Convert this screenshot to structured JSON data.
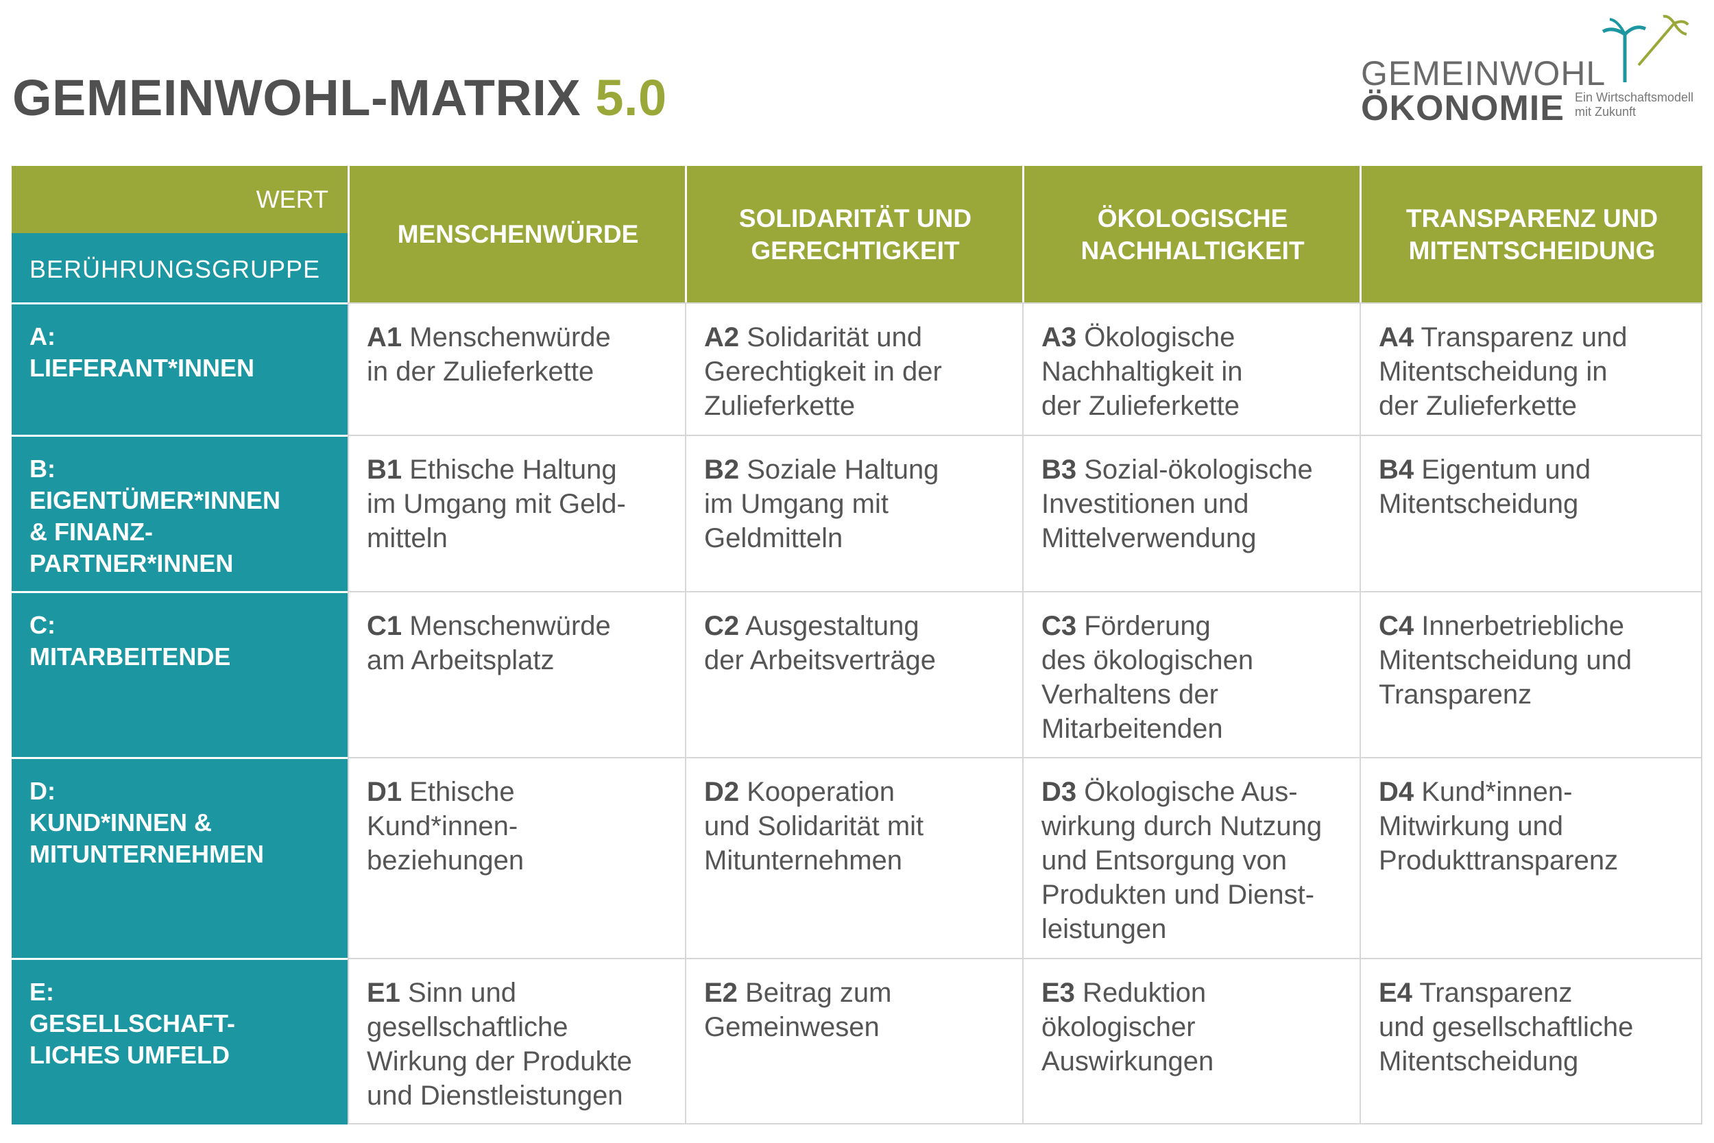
{
  "title": {
    "main": "GEMEINWOHL-MATRIX",
    "version": "5.0"
  },
  "logo": {
    "line1": "GEMEINWOHL",
    "line2": "ÖKONOMIE",
    "tagline1": "Ein Wirtschaftsmodell",
    "tagline2": "mit Zukunft",
    "icon": "palm-tree-icon",
    "colors": {
      "teal": "#1c97a2",
      "green": "#9aa83a"
    }
  },
  "colors": {
    "green": "#9aa83a",
    "teal": "#1c97a2",
    "text": "#555555"
  },
  "header": {
    "wert_label": "WERT",
    "group_label": "BERÜHRUNGSGRUPPE",
    "values": [
      {
        "line1": "MENSCHENWÜRDE",
        "line2": ""
      },
      {
        "line1": "SOLIDARITÄT UND",
        "line2": "GERECHTIGKEIT"
      },
      {
        "line1": "ÖKOLOGISCHE",
        "line2": "NACHHALTIGKEIT"
      },
      {
        "line1": "TRANSPARENZ UND",
        "line2": "MITENTSCHEIDUNG"
      }
    ]
  },
  "rows": [
    {
      "code": "A:",
      "label_lines": [
        "LIEFERANT*INNEN"
      ],
      "cells": [
        {
          "code": "A1",
          "lines": [
            " Menschenwürde",
            "in der Zulieferkette"
          ]
        },
        {
          "code": "A2",
          "lines": [
            " Solidarität und",
            "Gerechtigkeit in der",
            "Zulieferkette"
          ]
        },
        {
          "code": "A3",
          "lines": [
            " Ökologische",
            "Nachhaltigkeit in",
            "der Zulieferkette"
          ]
        },
        {
          "code": "A4",
          "lines": [
            " Transparenz und",
            "Mitentscheidung in",
            "der Zulieferkette"
          ]
        }
      ]
    },
    {
      "code": "B:",
      "label_lines": [
        "EIGENTÜMER*INNEN",
        "& FINANZ-",
        "PARTNER*INNEN"
      ],
      "cells": [
        {
          "code": "B1",
          "lines": [
            " Ethische Haltung",
            "im Umgang mit Geld-",
            "mitteln"
          ]
        },
        {
          "code": "B2",
          "lines": [
            " Soziale Haltung",
            "im Umgang mit",
            "Geldmitteln"
          ]
        },
        {
          "code": "B3",
          "lines": [
            " Sozial-ökologische",
            "Investitionen und",
            "Mittelverwendung"
          ]
        },
        {
          "code": "B4",
          "lines": [
            " Eigentum und",
            "Mitentscheidung"
          ]
        }
      ]
    },
    {
      "code": "C:",
      "label_lines": [
        "MITARBEITENDE"
      ],
      "cells": [
        {
          "code": "C1",
          "lines": [
            " Menschenwürde",
            "am Arbeitsplatz"
          ]
        },
        {
          "code": "C2",
          "lines": [
            " Ausgestaltung",
            "der Arbeitsverträge"
          ]
        },
        {
          "code": "C3",
          "lines": [
            " Förderung",
            "des ökologischen",
            "Verhaltens der",
            "Mitarbeitenden"
          ]
        },
        {
          "code": "C4",
          "lines": [
            " Innerbetriebliche",
            "Mitentscheidung und",
            "Transparenz"
          ]
        }
      ]
    },
    {
      "code": "D:",
      "label_lines": [
        "KUND*INNEN &",
        "MITUNTERNEHMEN"
      ],
      "cells": [
        {
          "code": "D1",
          "lines": [
            " Ethische",
            "Kund*innen-",
            "beziehungen"
          ]
        },
        {
          "code": "D2",
          "lines": [
            " Kooperation",
            "und Solidarität mit",
            "Mitunternehmen"
          ]
        },
        {
          "code": "D3",
          "lines": [
            " Ökologische Aus-",
            "wirkung durch Nutzung",
            "und Entsorgung von",
            "Produkten und Dienst-",
            "leistungen"
          ]
        },
        {
          "code": "D4",
          "lines": [
            " Kund*innen-",
            "Mitwirkung und",
            "Produkttransparenz"
          ]
        }
      ]
    },
    {
      "code": "E:",
      "label_lines": [
        "GESELLSCHAFT-",
        "LICHES UMFELD"
      ],
      "cells": [
        {
          "code": "E1",
          "lines": [
            " Sinn und",
            "gesellschaftliche",
            "Wirkung der Produkte",
            "und Dienstleistungen"
          ]
        },
        {
          "code": "E2",
          "lines": [
            " Beitrag zum",
            "Gemeinwesen"
          ]
        },
        {
          "code": "E3",
          "lines": [
            " Reduktion",
            "ökologischer",
            "Auswirkungen"
          ]
        },
        {
          "code": "E4",
          "lines": [
            " Transparenz",
            "und gesellschaftliche",
            "Mitentscheidung"
          ]
        }
      ]
    }
  ]
}
